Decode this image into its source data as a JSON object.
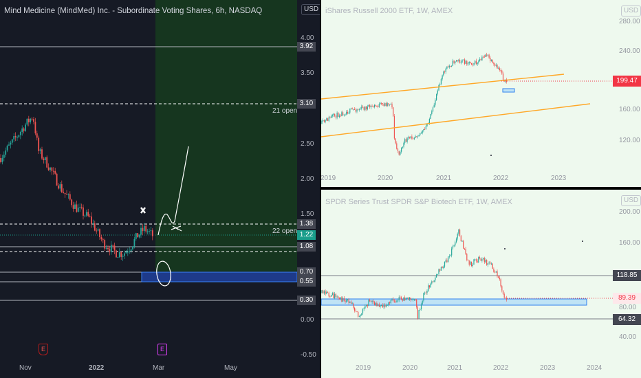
{
  "left_chart": {
    "title": "Mind Medicine (MindMed) Inc. - Subordinate Voting Shares, 6h, NASDAQ",
    "currency": "USD",
    "y_ticks": [
      "4.00",
      "3.50",
      "2.50",
      "2.00",
      "1.50",
      "0.00",
      "-0.50"
    ],
    "x_ticks": [
      "Nov",
      "2022",
      "Mar",
      "May"
    ],
    "price_tags": [
      {
        "value": "3.92",
        "style": "gray"
      },
      {
        "value": "3.10",
        "style": "gray"
      },
      {
        "value": "1.38",
        "style": "gray"
      },
      {
        "value": "1.22",
        "style": "green"
      },
      {
        "value": "1.08",
        "style": "gray"
      },
      {
        "value": "0.70",
        "style": "gray"
      },
      {
        "value": "0.55",
        "style": "gray"
      },
      {
        "value": "0.30",
        "style": "gray"
      }
    ],
    "annotations": {
      "open_21": "21 open",
      "open_22": "22 open"
    },
    "earnings_markers": [
      "E",
      "E"
    ],
    "colors": {
      "up": "#26a69a",
      "down": "#ef5350",
      "zone": "#1e3a8a",
      "shade": "#16361f",
      "tag_green": "#1a9e8c"
    }
  },
  "right_top_chart": {
    "title": "iShares Russell 2000 ETF, 1W, AMEX",
    "currency": "USD",
    "y_ticks": [
      "280.00",
      "240.00",
      "160.00",
      "120.00"
    ],
    "x_ticks": [
      "2019",
      "2020",
      "2021",
      "2022",
      "2023"
    ],
    "price_tag": {
      "value": "199.47",
      "color": "#f23645"
    },
    "channel_color": "#ffa726"
  },
  "right_bottom_chart": {
    "title": "SPDR Series Trust SPDR S&P Biotech ETF, 1W, AMEX",
    "currency": "USD",
    "y_ticks": [
      "200.00",
      "160.00",
      "80.00",
      "40.00"
    ],
    "x_ticks": [
      "2019",
      "2020",
      "2021",
      "2022",
      "2023",
      "2024"
    ],
    "price_tags": [
      {
        "value": "118.85",
        "style": "gray"
      },
      {
        "value": "89.39",
        "style": "red"
      },
      {
        "value": "64.32",
        "style": "gray"
      }
    ]
  }
}
